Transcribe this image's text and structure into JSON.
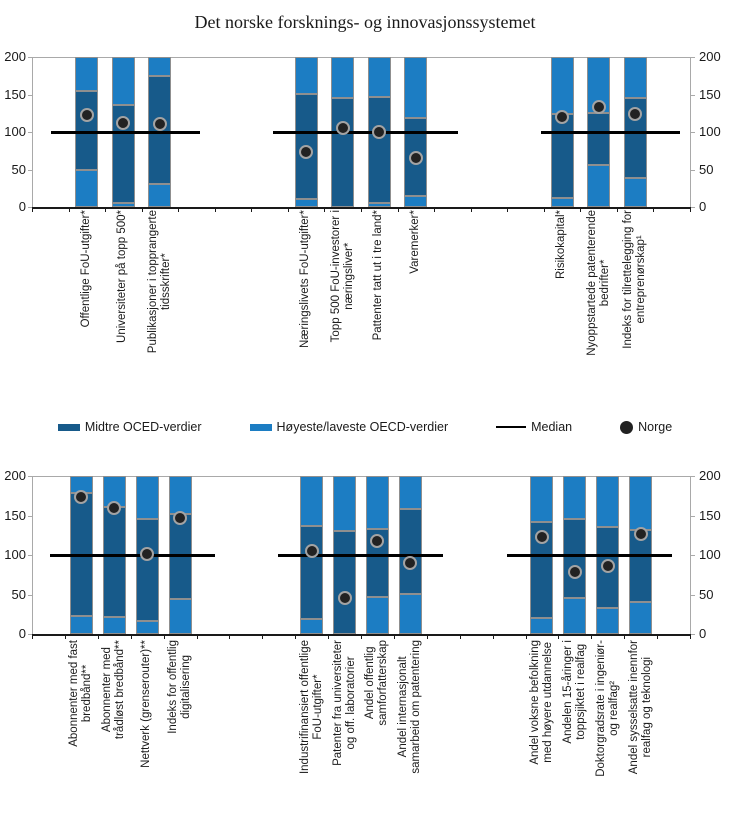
{
  "title": "Det norske forsknings- og innovasjonssystemet",
  "colors": {
    "dark_blue": "#175A8A",
    "light_blue": "#1C7DC3",
    "median_line": "#000000",
    "norge_dot": "#222222",
    "dot_ring": "#A3A3A3",
    "segment_border": "#8F8F8F",
    "axis_gray": "#A9A9A9",
    "axis_bottom": "#1A1A1A"
  },
  "legend": {
    "items": [
      {
        "label": "Midtre OCED-verdier",
        "swatch": "dark"
      },
      {
        "label": "Høyeste/laveste OECD-verdier",
        "swatch": "light"
      },
      {
        "label": "Median",
        "swatch": "line"
      },
      {
        "label": "Norge",
        "swatch": "dot"
      }
    ]
  },
  "chart_data": [
    {
      "type": "bar",
      "panel": "top",
      "ylim": [
        0,
        200
      ],
      "yticks": [
        "0",
        "50",
        "100",
        "150",
        "200"
      ],
      "median": 100,
      "legend_entries": [
        "Midtre OCED-verdier",
        "Høyeste/laveste OECD-verdier",
        "Median",
        "Norge"
      ],
      "groups": [
        {
          "bars": [
            {
              "label_lines": [
                "Offentlige FoU-utgifter*"
              ],
              "oecd_range": [
                0,
                200
              ],
              "mid_range": [
                49,
                155
              ],
              "norge": 123
            },
            {
              "label_lines": [
                "Universiteter på topp 500*"
              ],
              "oecd_range": [
                0,
                200
              ],
              "mid_range": [
                5,
                136
              ],
              "norge": 112
            },
            {
              "label_lines": [
                "Publikasjoner i topprangerte",
                "tidsskrifter*"
              ],
              "oecd_range": [
                0,
                200
              ],
              "mid_range": [
                31,
                175
              ],
              "norge": 111
            }
          ]
        },
        {
          "bars": [
            {
              "label_lines": [
                "Næringslivets FoU-utgifter*"
              ],
              "oecd_range": [
                0,
                200
              ],
              "mid_range": [
                11,
                151
              ],
              "norge": 73
            },
            {
              "label_lines": [
                "Topp 500 FoU-investorer i",
                "næringsliver*"
              ],
              "oecd_range": [
                0,
                200
              ],
              "mid_range": [
                0,
                146
              ],
              "norge": 106
            },
            {
              "label_lines": [
                "Pattenter tatt ut i tre land*"
              ],
              "oecd_range": [
                0,
                200
              ],
              "mid_range": [
                6,
                147
              ],
              "norge": 100
            },
            {
              "label_lines": [
                "Varemerker*"
              ],
              "oecd_range": [
                0,
                200
              ],
              "mid_range": [
                15,
                119
              ],
              "norge": 65
            }
          ]
        },
        {
          "bars": [
            {
              "label_lines": [
                "Risikokapital*"
              ],
              "oecd_range": [
                0,
                200
              ],
              "mid_range": [
                12,
                124
              ],
              "norge": 120
            },
            {
              "label_lines": [
                "Nyoppstartede patenterende",
                "bedrifter*"
              ],
              "oecd_range": [
                0,
                200
              ],
              "mid_range": [
                56,
                125
              ],
              "norge": 133
            },
            {
              "label_lines": [
                "Indeks for tilrettelegging for",
                "entreprenørskap¹"
              ],
              "oecd_range": [
                0,
                200
              ],
              "mid_range": [
                39,
                146
              ],
              "norge": 124
            }
          ]
        }
      ]
    },
    {
      "type": "bar",
      "panel": "bottom",
      "ylim": [
        0,
        200
      ],
      "yticks": [
        "0",
        "50",
        "100",
        "150",
        "200"
      ],
      "median": 100,
      "legend_entries": [
        "Midtre OCED-verdier",
        "Høyeste/laveste OECD-verdier",
        "Median",
        "Norge"
      ],
      "groups": [
        {
          "bars": [
            {
              "label_lines": [
                "Abonnenter med fast",
                "bredbånd**"
              ],
              "oecd_range": [
                0,
                200
              ],
              "mid_range": [
                23,
                179
              ],
              "norge": 173
            },
            {
              "label_lines": [
                "Abonnenter med",
                "trådløst bredbånd**"
              ],
              "oecd_range": [
                0,
                200
              ],
              "mid_range": [
                21,
                161
              ],
              "norge": 159
            },
            {
              "label_lines": [
                "Nettverk (grenserouter)**"
              ],
              "oecd_range": [
                0,
                200
              ],
              "mid_range": [
                17,
                145
              ],
              "norge": 101
            },
            {
              "label_lines": [
                "Indeks for offentlig",
                "digitalisering"
              ],
              "oecd_range": [
                0,
                200
              ],
              "mid_range": [
                44,
                152
              ],
              "norge": 147
            }
          ]
        },
        {
          "bars": [
            {
              "label_lines": [
                "Industrifinansiert offentlige",
                "FoU-utgifter*"
              ],
              "oecd_range": [
                0,
                200
              ],
              "mid_range": [
                19,
                137
              ],
              "norge": 105
            },
            {
              "label_lines": [
                "Patenter fra universiteter",
                "og off. laboratorier"
              ],
              "oecd_range": [
                0,
                200
              ],
              "mid_range": [
                0,
                130
              ],
              "norge": 46
            },
            {
              "label_lines": [
                "Andel offentlig",
                "samforfatterskap"
              ],
              "oecd_range": [
                0,
                200
              ],
              "mid_range": [
                47,
                133
              ],
              "norge": 118
            },
            {
              "label_lines": [
                "Andel internasjonalt",
                "samarbeid om patentering"
              ],
              "oecd_range": [
                0,
                200
              ],
              "mid_range": [
                51,
                158
              ],
              "norge": 90
            }
          ]
        },
        {
          "bars": [
            {
              "label_lines": [
                "Andel voksne befolkning",
                "med høyere utdannelse"
              ],
              "oecd_range": [
                0,
                200
              ],
              "mid_range": [
                20,
                142
              ],
              "norge": 123
            },
            {
              "label_lines": [
                "Andelen 15-åringer i",
                "toppsjiktet i realfag"
              ],
              "oecd_range": [
                0,
                200
              ],
              "mid_range": [
                45,
                145
              ],
              "norge": 78
            },
            {
              "label_lines": [
                "Doktorgradsrate i ingeniør-",
                "og realfag²"
              ],
              "oecd_range": [
                0,
                200
              ],
              "mid_range": [
                33,
                135
              ],
              "norge": 86
            },
            {
              "label_lines": [
                "Andel sysselsatte inennfor",
                "realfag og teknologi"
              ],
              "oecd_range": [
                0,
                200
              ],
              "mid_range": [
                40,
                132
              ],
              "norge": 127
            }
          ]
        }
      ]
    }
  ]
}
